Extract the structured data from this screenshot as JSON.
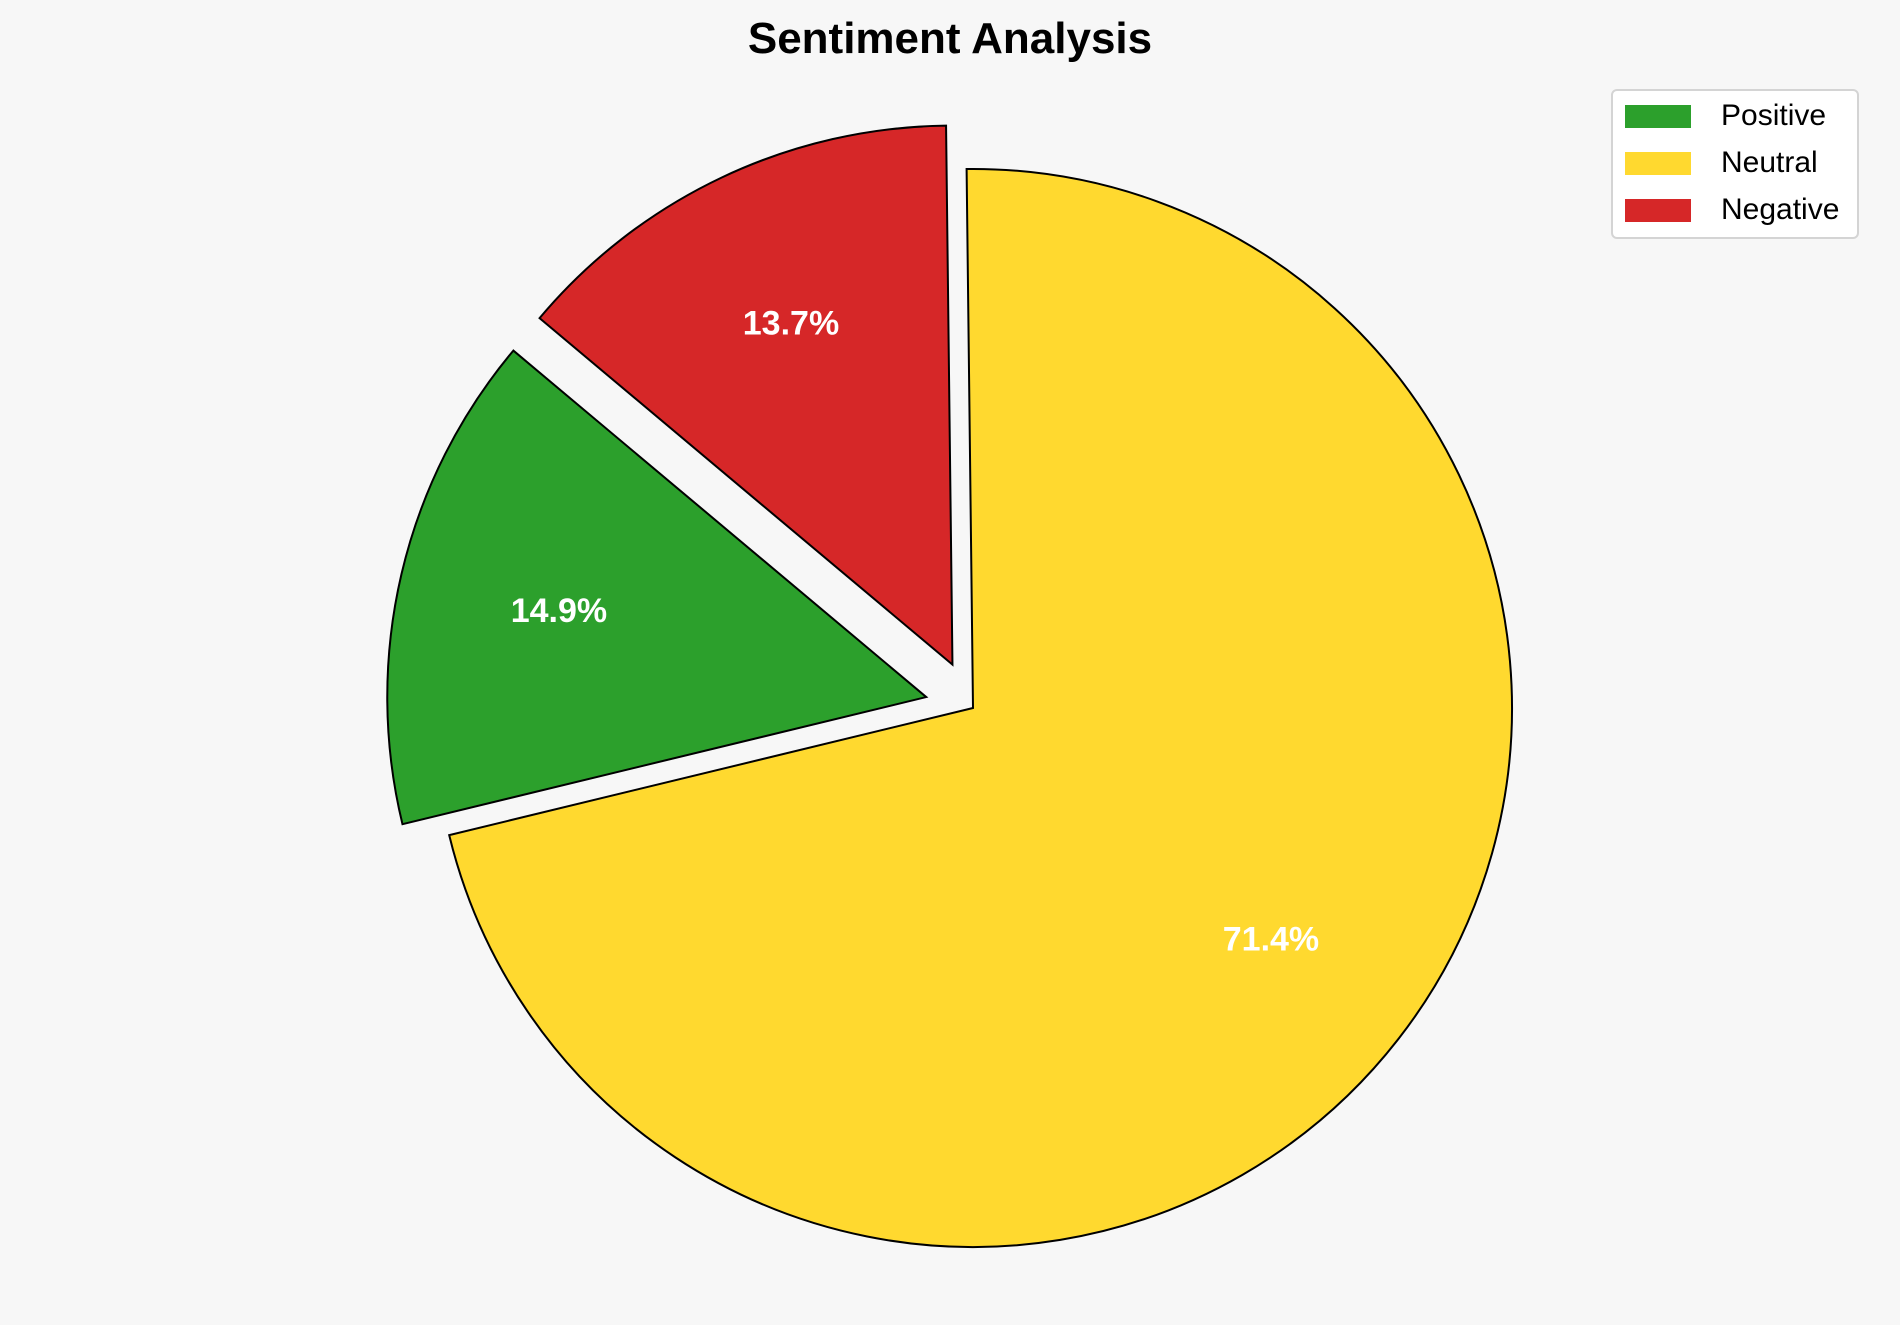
{
  "chart_data": {
    "type": "pie",
    "title": "Sentiment Analysis",
    "categories": [
      "Positive",
      "Neutral",
      "Negative"
    ],
    "values": [
      14.9,
      71.4,
      13.7
    ],
    "labels": [
      "14.9%",
      "71.4%",
      "13.7%"
    ],
    "colors": [
      "#2ca02c",
      "#ffd92f",
      "#d62728"
    ],
    "exploded": [
      true,
      false,
      true
    ],
    "start_angle_deg": 140,
    "direction": "counterclockwise",
    "legend": {
      "placement": "top-right",
      "entries": [
        "Positive",
        "Neutral",
        "Negative"
      ]
    }
  }
}
